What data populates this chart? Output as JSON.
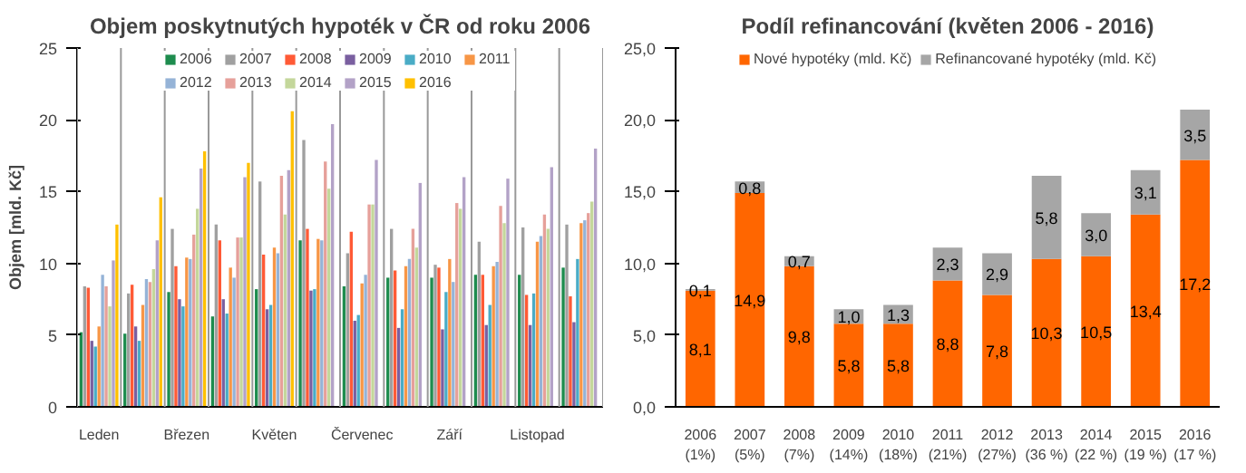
{
  "chart_data": [
    {
      "type": "bar",
      "title": "Objem poskytnutých hypoték v ČR od roku 2006",
      "ylabel": "Objem [mld. Kč]",
      "categories": [
        "Leden",
        null,
        "Březen",
        null,
        "Květen",
        null,
        "Červenec",
        null,
        "Září",
        null,
        "Listopad",
        null
      ],
      "ylim": [
        0,
        25
      ],
      "yticks": [
        0,
        5,
        10,
        15,
        20,
        25
      ],
      "grid": "x",
      "legend": "top",
      "series": [
        {
          "name": "2006",
          "color": "#1e8c4e",
          "values": [
            5.2,
            5.1,
            8.0,
            6.3,
            8.2,
            11.6,
            8.4,
            9.0,
            9.0,
            9.2,
            9.2,
            9.7
          ]
        },
        {
          "name": "2007",
          "color": "#a0a0a0",
          "values": [
            8.4,
            7.9,
            12.4,
            12.7,
            15.7,
            18.6,
            10.7,
            12.4,
            9.9,
            11.5,
            12.5,
            12.7
          ]
        },
        {
          "name": "2008",
          "color": "#ff5a36",
          "values": [
            8.3,
            8.5,
            9.8,
            11.6,
            10.6,
            12.4,
            12.2,
            9.5,
            9.7,
            9.2,
            7.8,
            7.7
          ]
        },
        {
          "name": "2009",
          "color": "#7a5fa0",
          "values": [
            4.6,
            5.6,
            7.5,
            7.5,
            6.8,
            8.1,
            6.0,
            5.5,
            5.4,
            5.7,
            5.7,
            5.9
          ]
        },
        {
          "name": "2010",
          "color": "#4aacc6",
          "values": [
            4.2,
            4.6,
            7.0,
            6.5,
            7.1,
            8.2,
            6.4,
            6.8,
            8.0,
            7.1,
            7.9,
            10.3
          ]
        },
        {
          "name": "2011",
          "color": "#f79646",
          "values": [
            5.6,
            7.1,
            10.4,
            9.7,
            11.1,
            11.7,
            8.6,
            9.8,
            10.3,
            9.8,
            11.5,
            12.8
          ]
        },
        {
          "name": "2012",
          "color": "#95b3d7",
          "values": [
            9.2,
            8.9,
            10.3,
            9.0,
            10.7,
            11.6,
            9.2,
            10.3,
            8.7,
            10.1,
            11.9,
            13.0
          ]
        },
        {
          "name": "2013",
          "color": "#e6a09a",
          "values": [
            8.4,
            8.7,
            12.0,
            11.8,
            16.1,
            17.1,
            14.1,
            12.4,
            14.2,
            14.0,
            13.4,
            13.5
          ]
        },
        {
          "name": "2014",
          "color": "#c4d79b",
          "values": [
            7.0,
            9.6,
            13.8,
            11.8,
            13.4,
            15.2,
            14.1,
            11.1,
            13.8,
            12.8,
            12.4,
            14.3
          ]
        },
        {
          "name": "2015",
          "color": "#b3a2c7",
          "values": [
            10.2,
            11.6,
            16.6,
            16.0,
            16.5,
            19.7,
            17.2,
            15.6,
            16.0,
            15.9,
            16.7,
            18.0
          ]
        },
        {
          "name": "2016",
          "color": "#ffc000",
          "values": [
            12.7,
            14.6,
            17.8,
            17.0,
            20.6,
            null,
            null,
            null,
            null,
            null,
            null,
            null
          ]
        }
      ]
    },
    {
      "type": "bar",
      "stacked": true,
      "title": "Podíl refinancování (květen 2006 - 2016)",
      "categories": [
        "2006 (1%)",
        "2007 (5%)",
        "2008 (7%)",
        "2009 (14%)",
        "2010 (18%)",
        "2011 (21%)",
        "2012 (27%)",
        "2013 (36 %)",
        "2014 (22 %)",
        "2015 (19 %)",
        "2016 (17 %)"
      ],
      "ylim": [
        0,
        25
      ],
      "yticks": [
        {
          "value": 0,
          "label": "0,0"
        },
        {
          "value": 5,
          "label": "5,0"
        },
        {
          "value": 10,
          "label": "10,0"
        },
        {
          "value": 15,
          "label": "15,0"
        },
        {
          "value": 20,
          "label": "20,0"
        },
        {
          "value": 25,
          "label": "25,0"
        }
      ],
      "legend": "top",
      "grid": false,
      "series": [
        {
          "name": "Nové hypotéky (mld. Kč)",
          "color": "#ff6600",
          "values": [
            8.1,
            14.9,
            9.8,
            5.8,
            5.8,
            8.8,
            7.8,
            10.3,
            10.5,
            13.4,
            17.2
          ],
          "value_labels": [
            "8,1",
            "14,9",
            "9,8",
            "5,8",
            "5,8",
            "8,8",
            "7,8",
            "10,3",
            "10,5",
            "13,4",
            "17,2"
          ]
        },
        {
          "name": "Refinancované hypotéky (mld. Kč)",
          "color": "#a6a6a6",
          "values": [
            0.1,
            0.8,
            0.7,
            1.0,
            1.3,
            2.3,
            2.9,
            5.8,
            3.0,
            3.1,
            3.5
          ],
          "value_labels": [
            "0,1",
            "0,8",
            "0,7",
            "1,0",
            "1,3",
            "2,3",
            "2,9",
            "5,8",
            "3,0",
            "3,1",
            "3,5"
          ]
        }
      ]
    }
  ]
}
